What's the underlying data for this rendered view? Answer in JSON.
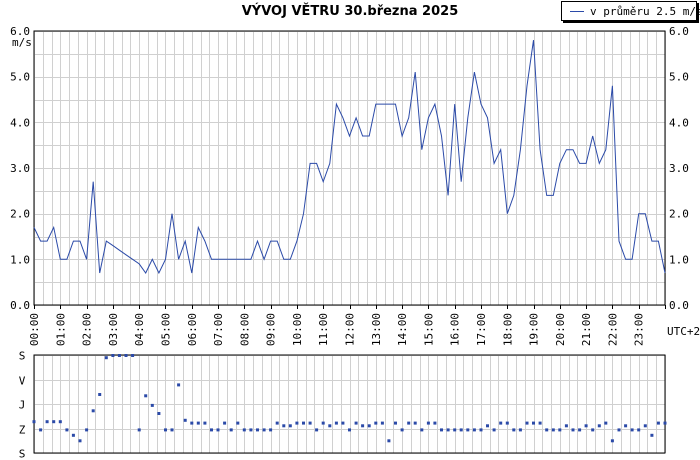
{
  "title": "VÝVOJ VĚTRU  30.března 2025",
  "legend": {
    "label": "v průměru 2.5 m/s",
    "color": "#2b4aa8"
  },
  "colors": {
    "series": "#2b4aa8",
    "grid": "#d0d0d0",
    "axis": "#000000"
  },
  "chart_data": [
    {
      "type": "line",
      "title": "VÝVOJ VĚTRU  30.března 2025",
      "ylabel": "m/s",
      "xlabel": "UTC+2",
      "ylim": [
        0,
        6
      ],
      "yticks": [
        "0.0",
        "1.0",
        "2.0",
        "3.0",
        "4.0",
        "5.0",
        "6.0"
      ],
      "xlim": [
        0,
        24
      ],
      "xticks": [
        "00:00",
        "01:00",
        "02:00",
        "03:00",
        "04:00",
        "05:00",
        "06:00",
        "07:00",
        "08:00",
        "09:00",
        "10:00",
        "11:00",
        "12:00",
        "13:00",
        "14:00",
        "15:00",
        "16:00",
        "17:00",
        "18:00",
        "19:00",
        "20:00",
        "21:00",
        "22:00",
        "23:00"
      ],
      "grid": true,
      "legend_position": "top-right",
      "series": [
        {
          "name": "v průměru 2.5 m/s",
          "x": [
            0,
            0.25,
            0.5,
            0.75,
            1,
            1.25,
            1.5,
            1.75,
            2,
            2.25,
            2.5,
            2.75,
            3,
            3.25,
            3.5,
            3.75,
            4,
            4.25,
            4.5,
            4.75,
            5,
            5.25,
            5.5,
            5.75,
            6,
            6.25,
            6.5,
            6.75,
            7,
            7.25,
            7.5,
            7.75,
            8,
            8.25,
            8.5,
            8.75,
            9,
            9.25,
            9.5,
            9.75,
            10,
            10.25,
            10.5,
            10.75,
            11,
            11.25,
            11.5,
            11.75,
            12,
            12.25,
            12.5,
            12.75,
            13,
            13.25,
            13.5,
            13.75,
            14,
            14.25,
            14.5,
            14.75,
            15,
            15.25,
            15.5,
            15.75,
            16,
            16.25,
            16.5,
            16.75,
            17,
            17.25,
            17.5,
            17.75,
            18,
            18.25,
            18.5,
            18.75,
            19,
            19.25,
            19.5,
            19.75,
            20,
            20.25,
            20.5,
            20.75,
            21,
            21.25,
            21.5,
            21.75,
            22,
            22.25,
            22.5,
            22.75,
            23,
            23.25,
            23.5,
            23.75,
            24
          ],
          "values": [
            1.7,
            1.4,
            1.4,
            1.7,
            1.0,
            1.0,
            1.4,
            1.4,
            1.0,
            2.7,
            0.7,
            1.4,
            1.3,
            1.2,
            1.1,
            1.0,
            0.9,
            0.7,
            1.0,
            0.7,
            1.0,
            2.0,
            1.0,
            1.4,
            0.7,
            1.7,
            1.4,
            1.0,
            1.0,
            1.0,
            1.0,
            1.0,
            1.0,
            1.0,
            1.4,
            1.0,
            1.4,
            1.4,
            1.0,
            1.0,
            1.4,
            2.0,
            3.1,
            3.1,
            2.7,
            3.1,
            4.4,
            4.1,
            3.7,
            4.1,
            3.7,
            3.7,
            4.4,
            4.4,
            4.4,
            4.4,
            3.7,
            4.1,
            5.1,
            3.4,
            4.1,
            4.4,
            3.7,
            2.4,
            4.4,
            2.7,
            4.1,
            5.1,
            4.4,
            4.1,
            3.1,
            3.4,
            2.0,
            2.4,
            3.4,
            4.8,
            5.8,
            3.4,
            2.4,
            2.4,
            3.1,
            3.4,
            3.4,
            3.1,
            3.1,
            3.7,
            3.1,
            3.4,
            4.8,
            1.4,
            1.0,
            1.0,
            2.0,
            2.0,
            1.4,
            1.4,
            0.7
          ]
        }
      ]
    },
    {
      "type": "scatter",
      "xlabel": "",
      "ylabel": "",
      "ylim": [
        0,
        360
      ],
      "yticks": [
        "S",
        "V",
        "J",
        "Z",
        "S"
      ],
      "xlim": [
        0,
        24
      ],
      "grid": true,
      "series": [
        {
          "name": "",
          "x": [
            0,
            0.25,
            0.5,
            0.75,
            1,
            1.25,
            1.5,
            1.75,
            2,
            2.25,
            2.5,
            2.75,
            3,
            3.25,
            3.5,
            3.75,
            4,
            4.25,
            4.5,
            4.75,
            5,
            5.25,
            5.5,
            5.75,
            6,
            6.25,
            6.5,
            6.75,
            7,
            7.25,
            7.5,
            7.75,
            8,
            8.25,
            8.5,
            8.75,
            9,
            9.25,
            9.5,
            9.75,
            10,
            10.25,
            10.5,
            10.75,
            11,
            11.25,
            11.5,
            11.75,
            12,
            12.25,
            12.5,
            12.75,
            13,
            13.25,
            13.5,
            13.75,
            14,
            14.25,
            14.5,
            14.75,
            15,
            15.25,
            15.5,
            15.75,
            16,
            16.25,
            16.5,
            16.75,
            17,
            17.25,
            17.5,
            17.75,
            18,
            18.25,
            18.5,
            18.75,
            19,
            19.25,
            19.5,
            19.75,
            20,
            20.25,
            20.5,
            20.75,
            21,
            21.25,
            21.5,
            21.75,
            22,
            22.25,
            22.5,
            22.75,
            23,
            23.25,
            23.5,
            23.75,
            24
          ],
          "values": [
            115,
            85,
            115,
            115,
            115,
            85,
            65,
            45,
            85,
            155,
            215,
            350,
            358,
            358,
            358,
            358,
            85,
            210,
            175,
            145,
            85,
            85,
            250,
            120,
            110,
            110,
            110,
            85,
            85,
            110,
            85,
            110,
            85,
            85,
            85,
            85,
            85,
            110,
            100,
            100,
            110,
            110,
            110,
            85,
            110,
            100,
            110,
            110,
            85,
            110,
            100,
            100,
            110,
            110,
            45,
            110,
            85,
            110,
            110,
            85,
            110,
            110,
            85,
            85,
            85,
            85,
            85,
            85,
            85,
            100,
            85,
            110,
            110,
            85,
            85,
            110,
            110,
            110,
            85,
            85,
            85,
            100,
            85,
            85,
            100,
            85,
            100,
            110,
            45,
            85,
            100,
            85,
            85,
            100,
            65,
            110,
            110
          ]
        }
      ]
    }
  ]
}
